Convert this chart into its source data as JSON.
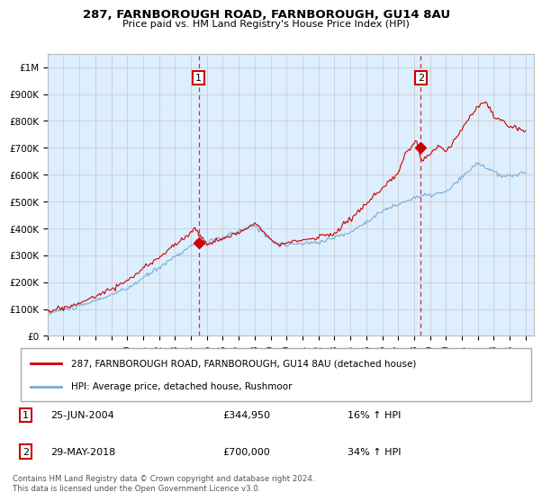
{
  "title": "287, FARNBOROUGH ROAD, FARNBOROUGH, GU14 8AU",
  "subtitle": "Price paid vs. HM Land Registry's House Price Index (HPI)",
  "ylabel_ticks": [
    "£0",
    "£100K",
    "£200K",
    "£300K",
    "£400K",
    "£500K",
    "£600K",
    "£700K",
    "£800K",
    "£900K",
    "£1M"
  ],
  "ytick_vals": [
    0,
    100000,
    200000,
    300000,
    400000,
    500000,
    600000,
    700000,
    800000,
    900000,
    1000000
  ],
  "ylim": [
    0,
    1050000
  ],
  "xlim_start": 1995.0,
  "xlim_end": 2025.5,
  "red_line_color": "#cc0000",
  "blue_line_color": "#7aadce",
  "plot_bg_color": "#ddeeff",
  "marker1_x": 2004.48,
  "marker1_y": 344950,
  "marker1_label": "1",
  "marker2_x": 2018.41,
  "marker2_y": 700000,
  "marker2_label": "2",
  "vline1_x": 2004.48,
  "vline2_x": 2018.41,
  "vline_color": "#cc0000",
  "grid_color": "#cccccc",
  "background_color": "#ffffff",
  "legend_line1": "287, FARNBOROUGH ROAD, FARNBOROUGH, GU14 8AU (detached house)",
  "legend_line2": "HPI: Average price, detached house, Rushmoor",
  "annotation1_num": "1",
  "annotation1_date": "25-JUN-2004",
  "annotation1_price": "£344,950",
  "annotation1_hpi": "16% ↑ HPI",
  "annotation2_num": "2",
  "annotation2_date": "29-MAY-2018",
  "annotation2_price": "£700,000",
  "annotation2_hpi": "34% ↑ HPI",
  "footer": "Contains HM Land Registry data © Crown copyright and database right 2024.\nThis data is licensed under the Open Government Licence v3.0.",
  "xticks": [
    1995,
    1996,
    1997,
    1998,
    1999,
    2000,
    2001,
    2002,
    2003,
    2004,
    2005,
    2006,
    2007,
    2008,
    2009,
    2010,
    2011,
    2012,
    2013,
    2014,
    2015,
    2016,
    2017,
    2018,
    2019,
    2020,
    2021,
    2022,
    2023,
    2024,
    2025
  ]
}
